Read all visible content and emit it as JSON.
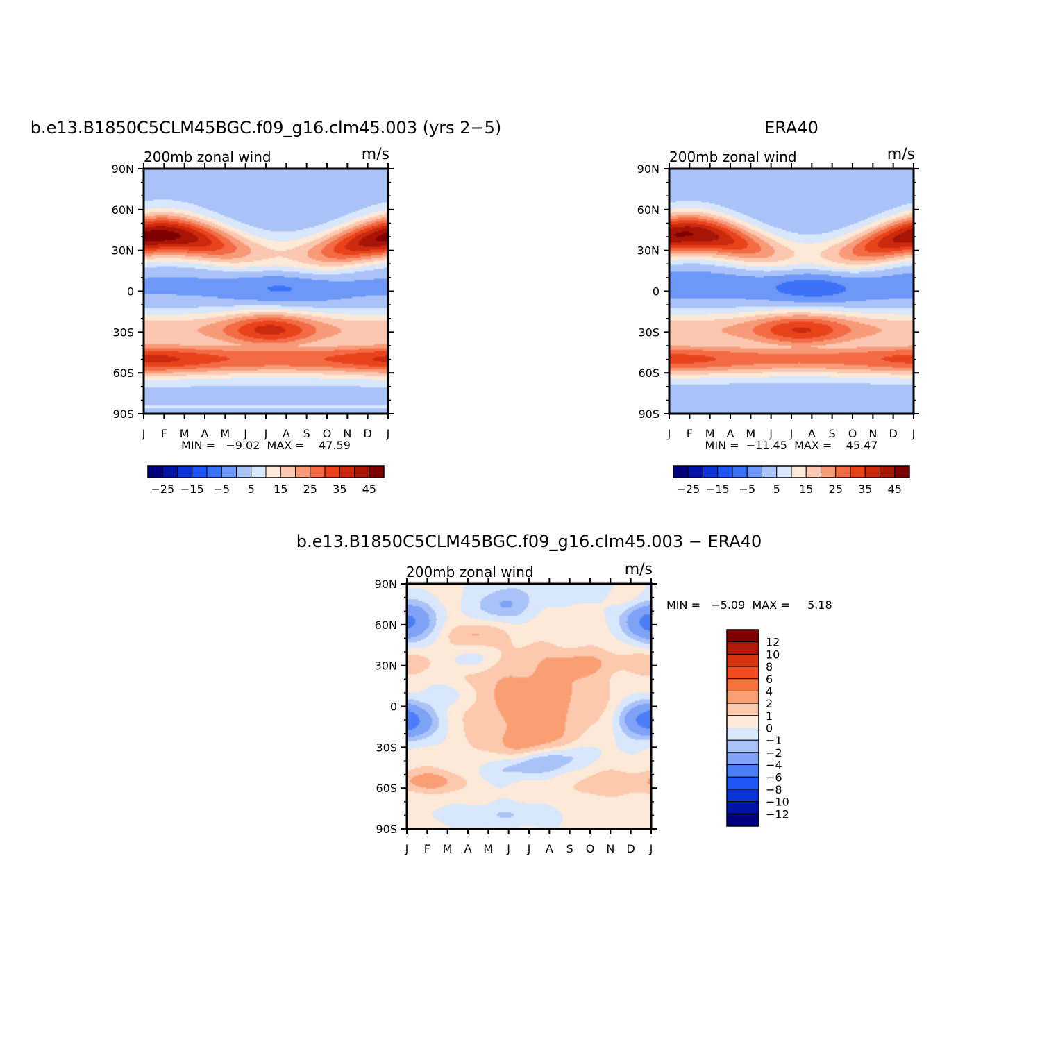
{
  "figure": {
    "panels": [
      {
        "id": "model",
        "title": "b.e13.B1850C5CLM45BGC.f09_g16.clm45.003 (yrs 2−5)",
        "left_label": "200mb  zonal wind",
        "right_label": "m/s",
        "min_max": "MIN =   −9.02  MAX =    47.59"
      },
      {
        "id": "obs",
        "title": "ERA40",
        "left_label": "200mb  zonal wind",
        "right_label": "m/s",
        "min_max": "MIN =  −11.45  MAX =    45.47"
      },
      {
        "id": "diff",
        "title": "b.e13.B1850C5CLM45BGC.f09_g16.clm45.003 − ERA40",
        "left_label": "200mb  zonal wind",
        "right_label": "m/s",
        "min_max": "MIN =   −5.09  MAX =     5.18"
      }
    ],
    "lat_ticks": [
      "90N",
      "60N",
      "30N",
      "0",
      "30S",
      "60S",
      "90S"
    ],
    "month_ticks": [
      "J",
      "F",
      "M",
      "A",
      "M",
      "J",
      "J",
      "A",
      "S",
      "O",
      "N",
      "D",
      "J"
    ],
    "colorbar_top": {
      "labels": [
        "−25",
        "−15",
        "−5",
        "5",
        "15",
        "25",
        "35",
        "45"
      ],
      "colors": [
        "#00007f",
        "#0013a6",
        "#0a35d4",
        "#1f55f5",
        "#3b72f7",
        "#6e98f7",
        "#a9c2f8",
        "#d8e7fb",
        "#fde9d8",
        "#fcc7b0",
        "#f79a77",
        "#f26b45",
        "#e9431c",
        "#cb2a0e",
        "#a81506",
        "#7e0000"
      ]
    },
    "colorbar_diff": {
      "labels": [
        "12",
        "10",
        "8",
        "6",
        "4",
        "2",
        "1",
        "0",
        "−1",
        "−2",
        "−4",
        "−6",
        "−8",
        "−10",
        "−12"
      ],
      "colors": [
        "#7e0000",
        "#b01a06",
        "#d93410",
        "#f24b20",
        "#f7733e",
        "#fa9f74",
        "#fcc8ae",
        "#fde9d8",
        "#d8e7fb",
        "#a9c2f8",
        "#7ea2f6",
        "#4b7ef6",
        "#1f55f5",
        "#0a35d4",
        "#0013a6",
        "#00007f"
      ]
    }
  },
  "chart_data": [
    {
      "type": "heatmap",
      "title": "b.e13.B1850C5CLM45BGC.f09_g16.clm45.003 (yrs 2−5)",
      "x": [
        "J",
        "F",
        "M",
        "A",
        "M",
        "J",
        "J",
        "A",
        "S",
        "O",
        "N",
        "D",
        "J"
      ],
      "y": [
        90,
        60,
        30,
        0,
        -30,
        -60,
        -90
      ],
      "units": "m/s",
      "min": -9.02,
      "max": 47.59
    },
    {
      "type": "heatmap",
      "title": "ERA40",
      "x": [
        "J",
        "F",
        "M",
        "A",
        "M",
        "J",
        "J",
        "A",
        "S",
        "O",
        "N",
        "D",
        "J"
      ],
      "y": [
        90,
        60,
        30,
        0,
        -30,
        -60,
        -90
      ],
      "units": "m/s",
      "min": -11.45,
      "max": 45.47
    },
    {
      "type": "heatmap",
      "title": "b.e13.B1850C5CLM45BGC.f09_g16.clm45.003 − ERA40",
      "x": [
        "J",
        "F",
        "M",
        "A",
        "M",
        "J",
        "J",
        "A",
        "S",
        "O",
        "N",
        "D",
        "J"
      ],
      "y": [
        90,
        60,
        30,
        0,
        -30,
        -60,
        -90
      ],
      "units": "m/s",
      "min": -5.09,
      "max": 5.18
    }
  ]
}
